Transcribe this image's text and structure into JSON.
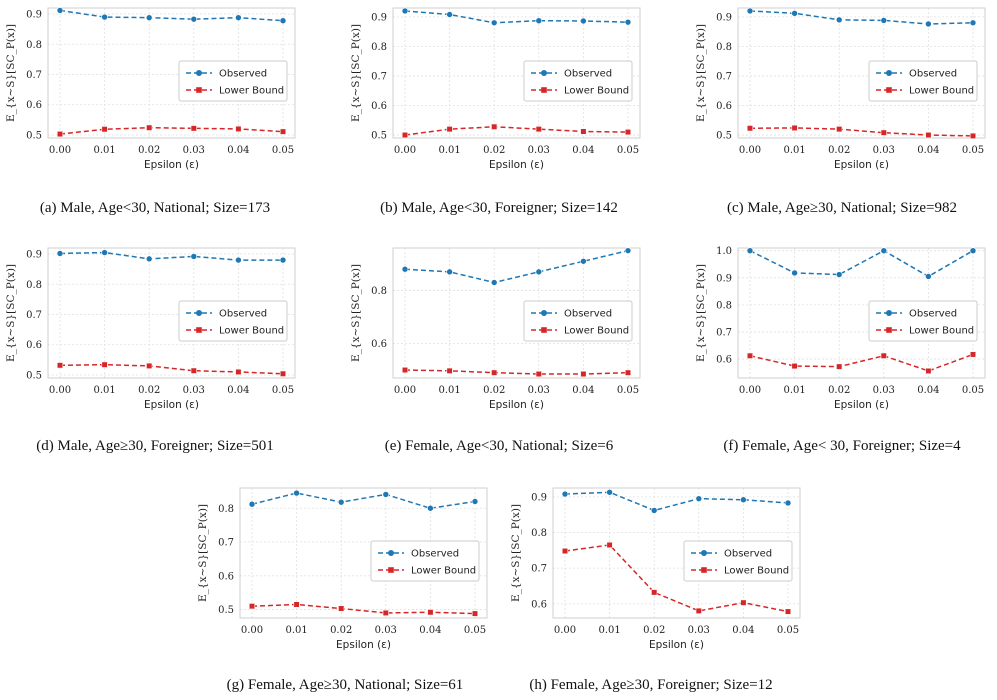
{
  "colors": {
    "observed": "#1f77b4",
    "lower_bound": "#d62728",
    "grid": "#e0e0e0",
    "frame": "#cfcfcf"
  },
  "chart_data": [
    {
      "type": "line",
      "caption": "(a) Male, Age<30, National; Size=173",
      "x": [
        "0.00",
        "0.01",
        "0.02",
        "0.03",
        "0.04",
        "0.05"
      ],
      "xlabel": "Epsilon (ε)",
      "ylabel": "E_{x∼S}[SC_P(x)]",
      "ylim": [
        0.49,
        0.92
      ],
      "yticks": [
        "0.5",
        "0.6",
        "0.7",
        "0.8",
        "0.9"
      ],
      "legend": "right-middle",
      "grid": true,
      "series": [
        {
          "name": "Observed",
          "marker": "circle",
          "values": [
            0.912,
            0.89,
            0.888,
            0.883,
            0.888,
            0.878
          ]
        },
        {
          "name": "Lower Bound",
          "marker": "square",
          "values": [
            0.503,
            0.519,
            0.524,
            0.522,
            0.52,
            0.511
          ]
        }
      ]
    },
    {
      "type": "line",
      "caption": "(b) Male, Age<30, Foreigner; Size=142",
      "x": [
        "0.00",
        "0.01",
        "0.02",
        "0.03",
        "0.04",
        "0.05"
      ],
      "xlabel": "Epsilon (ε)",
      "ylabel": "E_{x∼S}[SC_P(x)]",
      "ylim": [
        0.49,
        0.93
      ],
      "yticks": [
        "0.5",
        "0.6",
        "0.7",
        "0.8",
        "0.9"
      ],
      "legend": "right-middle",
      "grid": true,
      "series": [
        {
          "name": "Observed",
          "marker": "circle",
          "values": [
            0.92,
            0.908,
            0.88,
            0.887,
            0.886,
            0.882
          ]
        },
        {
          "name": "Lower Bound",
          "marker": "square",
          "values": [
            0.5,
            0.52,
            0.528,
            0.52,
            0.512,
            0.51
          ]
        }
      ]
    },
    {
      "type": "line",
      "caption": "(c) Male, Age≥30, National; Size=982",
      "x": [
        "0.00",
        "0.01",
        "0.02",
        "0.03",
        "0.04",
        "0.05"
      ],
      "xlabel": "Epsilon (ε)",
      "ylabel": "E_{x∼S}[SC_P(x)]",
      "ylim": [
        0.49,
        0.93
      ],
      "yticks": [
        "0.5",
        "0.6",
        "0.7",
        "0.8",
        "0.9"
      ],
      "legend": "right-middle",
      "grid": true,
      "series": [
        {
          "name": "Observed",
          "marker": "circle",
          "values": [
            0.92,
            0.912,
            0.89,
            0.888,
            0.876,
            0.88
          ]
        },
        {
          "name": "Lower Bound",
          "marker": "square",
          "values": [
            0.523,
            0.524,
            0.52,
            0.508,
            0.5,
            0.497
          ]
        }
      ]
    },
    {
      "type": "line",
      "caption": "(d) Male, Age≥30, Foreigner; Size=501",
      "x": [
        "0.00",
        "0.01",
        "0.02",
        "0.03",
        "0.04",
        "0.05"
      ],
      "xlabel": "Epsilon (ε)",
      "ylabel": "E_{x∼S}[SC_P(x)]",
      "ylim": [
        0.49,
        0.92
      ],
      "yticks": [
        "0.5",
        "0.6",
        "0.7",
        "0.8",
        "0.9"
      ],
      "legend": "right-middle",
      "grid": true,
      "series": [
        {
          "name": "Observed",
          "marker": "circle",
          "values": [
            0.902,
            0.905,
            0.884,
            0.892,
            0.88,
            0.88
          ]
        },
        {
          "name": "Lower Bound",
          "marker": "square",
          "values": [
            0.532,
            0.534,
            0.53,
            0.514,
            0.51,
            0.504
          ]
        }
      ]
    },
    {
      "type": "line",
      "caption": "(e) Female, Age<30, National; Size=6",
      "x": [
        "0.00",
        "0.01",
        "0.02",
        "0.03",
        "0.04",
        "0.05"
      ],
      "xlabel": "Epsilon (ε)",
      "ylabel": "E_{x∼S}[SC_P(x)]",
      "ylim": [
        0.47,
        0.96
      ],
      "yticks": [
        "0.6",
        "0.8"
      ],
      "legend": "right-middle",
      "grid": true,
      "series": [
        {
          "name": "Observed",
          "marker": "circle",
          "values": [
            0.88,
            0.87,
            0.83,
            0.87,
            0.91,
            0.95
          ]
        },
        {
          "name": "Lower Bound",
          "marker": "square",
          "values": [
            0.5,
            0.497,
            0.49,
            0.485,
            0.485,
            0.49
          ]
        }
      ]
    },
    {
      "type": "line",
      "caption": "(f) Female, Age< 30, Foreigner; Size=4",
      "x": [
        "0.00",
        "0.01",
        "0.02",
        "0.03",
        "0.04",
        "0.05"
      ],
      "xlabel": "Epsilon (ε)",
      "ylabel": "E_{x∼S}[SC_P(x)]",
      "ylim": [
        0.53,
        1.01
      ],
      "yticks": [
        "0.6",
        "0.7",
        "0.8",
        "0.9",
        "1.0"
      ],
      "legend": "right-middle",
      "grid": true,
      "series": [
        {
          "name": "Observed",
          "marker": "circle",
          "values": [
            1.0,
            0.918,
            0.912,
            1.0,
            0.905,
            1.0
          ]
        },
        {
          "name": "Lower Bound",
          "marker": "square",
          "values": [
            0.612,
            0.574,
            0.572,
            0.612,
            0.556,
            0.617
          ]
        }
      ]
    },
    {
      "type": "line",
      "caption": "(g) Female, Age≥30, National; Size=61",
      "x": [
        "0.00",
        "0.01",
        "0.02",
        "0.03",
        "0.04",
        "0.05"
      ],
      "xlabel": "Epsilon (ε)",
      "ylabel": "E_{x∼S}[SC_P(x)]",
      "ylim": [
        0.475,
        0.86
      ],
      "yticks": [
        "0.5",
        "0.6",
        "0.7",
        "0.8"
      ],
      "legend": "right-middle",
      "grid": true,
      "series": [
        {
          "name": "Observed",
          "marker": "circle",
          "values": [
            0.812,
            0.845,
            0.818,
            0.841,
            0.8,
            0.82
          ]
        },
        {
          "name": "Lower Bound",
          "marker": "square",
          "values": [
            0.51,
            0.515,
            0.503,
            0.49,
            0.492,
            0.488
          ]
        }
      ]
    },
    {
      "type": "line",
      "caption": "(h) Female, Age≥30, Foreigner; Size=12",
      "x": [
        "0.00",
        "0.01",
        "0.02",
        "0.03",
        "0.04",
        "0.05"
      ],
      "xlabel": "Epsilon (ε)",
      "ylabel": "E_{x∼S}[SC_P(x)]",
      "ylim": [
        0.56,
        0.925
      ],
      "yticks": [
        "0.6",
        "0.7",
        "0.8",
        "0.9"
      ],
      "legend": "right-middle",
      "grid": true,
      "series": [
        {
          "name": "Observed",
          "marker": "circle",
          "values": [
            0.908,
            0.913,
            0.862,
            0.895,
            0.892,
            0.883
          ]
        },
        {
          "name": "Lower Bound",
          "marker": "square",
          "values": [
            0.748,
            0.765,
            0.632,
            0.58,
            0.603,
            0.578
          ]
        }
      ]
    }
  ]
}
